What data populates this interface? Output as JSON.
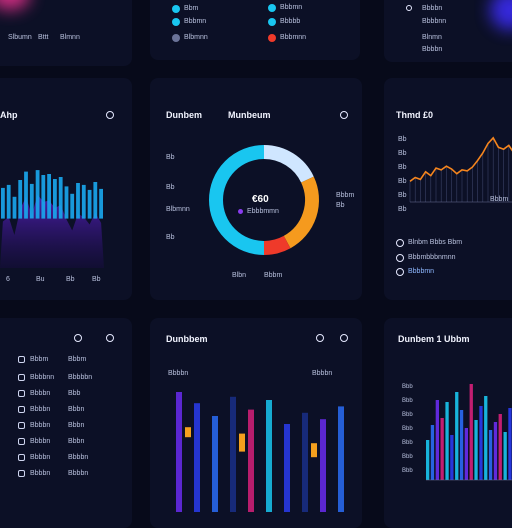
{
  "colors": {
    "background": "#070a1a",
    "panel": "#0c1026",
    "cyan": "#19c6f0",
    "blue": "#2a6cf6",
    "purple": "#6a2cf0",
    "orange": "#f59a1e",
    "red": "#ef3a2a",
    "magenta": "#d6207a"
  },
  "top_left": {
    "label_a": "Slbumn",
    "label_b": "Bttt",
    "label_c": "Blmnn"
  },
  "top_middle": {
    "rows": [
      {
        "label": "Bbm",
        "color": "#19c6f0"
      },
      {
        "label": "Bbbmn",
        "color": "#19c6f0"
      },
      {
        "label": "Blbmnn",
        "color": "#6b7398"
      }
    ],
    "rows_right": [
      {
        "label": "Bbbmn",
        "color": "#19c6f0"
      },
      {
        "label": "Bbbbb",
        "color": "#19c6f0"
      },
      {
        "label": "Bbbmnn",
        "color": "#ef3a2a"
      }
    ]
  },
  "top_right": {
    "rows": [
      "Bbbbn",
      "Bbbbnn",
      "Blnmn",
      "Bbbbn"
    ]
  },
  "left_chart": {
    "title": "Ahp",
    "x_labels": [
      "6",
      "Bu",
      "Bb",
      "Bb"
    ],
    "chart_data": {
      "type": "bar",
      "values": [
        62,
        68,
        44,
        78,
        95,
        70,
        98,
        88,
        90,
        80,
        84,
        65,
        50,
        72,
        68,
        58,
        74,
        60
      ]
    }
  },
  "donut": {
    "title": "Dunbem",
    "title_right": "Munbeum",
    "center_value": "€60",
    "center_sub": "Ebbbmmn",
    "left_labels": [
      "Bb",
      "Bb",
      "Blbmnn",
      "Bb"
    ],
    "right_labels": [
      "Bbbm",
      "Bb"
    ],
    "bottom_labels": [
      "Blbn",
      "Bbbm"
    ],
    "chart_data": {
      "type": "pie",
      "slices": [
        {
          "name": "",
          "value": 18,
          "color": "#cfe6ff"
        },
        {
          "name": "",
          "value": 24,
          "color": "#f59a1e"
        },
        {
          "name": "",
          "value": 8,
          "color": "#ef3a2a"
        },
        {
          "name": "",
          "value": 50,
          "color": "#19c6f0"
        }
      ]
    }
  },
  "line_chart": {
    "title": "Thmd £0",
    "y_labels": [
      "Bb",
      "Bb",
      "Bb",
      "Bb",
      "Bb",
      "Bb"
    ],
    "x_label": "Bbbm",
    "legend": [
      "Blnbm Bbbs Bbm",
      "Bbbmbbbnmnn",
      "Bbbbmn"
    ],
    "chart_data": {
      "type": "line",
      "y": [
        22,
        26,
        24,
        32,
        28,
        36,
        34,
        38,
        35,
        30,
        34,
        33,
        37,
        44,
        52,
        62,
        68,
        58,
        56,
        60,
        52
      ]
    }
  },
  "list_panel": {
    "headers": [
      "Bbbm",
      "Bbbm"
    ],
    "rows": [
      {
        "left": "Bbbbnn",
        "right": "Bbbbbn"
      },
      {
        "left": "Bbbbn",
        "right": "Bbb"
      },
      {
        "left": "Bbbbn",
        "right": "Bbbn"
      },
      {
        "left": "Bbbbn",
        "right": "Bbbn"
      },
      {
        "left": "Bbbbn",
        "right": "Bbbn"
      },
      {
        "left": "Bbbbn",
        "right": "Bbbbn"
      },
      {
        "left": "Bbbbn",
        "right": "Bbbbn"
      }
    ]
  },
  "bars_panel": {
    "title": "Dunbbem",
    "label_left": "Bbbbn",
    "label_right": "Bbbbn",
    "chart_data": {
      "type": "bar",
      "series": [
        {
          "values": [
            75,
            68,
            60,
            72,
            64,
            70,
            55,
            62,
            58,
            66
          ]
        },
        {
          "values": [
            0,
            10,
            0,
            0,
            18,
            0,
            0,
            0,
            14,
            0
          ]
        }
      ]
    }
  },
  "dense_bars": {
    "title": "Dunbem 1 Ubbm",
    "y_labels": [
      "Bbb",
      "Bbb",
      "Bbb",
      "Bbb",
      "Bbb",
      "Bbb",
      "Bbb"
    ],
    "chart_data": {
      "type": "bar",
      "values": [
        40,
        55,
        80,
        62,
        78,
        45,
        88,
        70,
        52,
        96,
        60,
        74,
        84,
        50,
        58,
        66,
        48,
        72,
        62
      ]
    }
  }
}
